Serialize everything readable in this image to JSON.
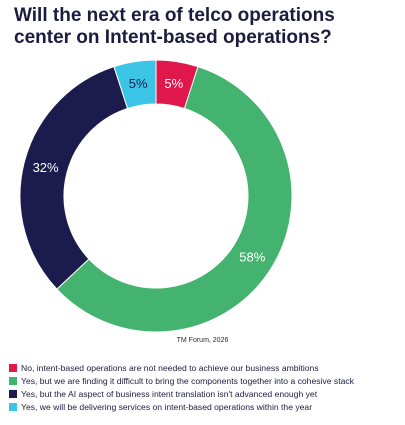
{
  "title": {
    "line1": "Will the next era of telco operations",
    "line2": "center on Intent-based operations?"
  },
  "source": "TM Forum, 2026",
  "chart_data": {
    "type": "pie",
    "donut": true,
    "start_angle_deg": 0,
    "direction": "clockwise",
    "values": [
      5,
      58,
      32,
      5
    ],
    "value_labels": [
      "5%",
      "58%",
      "32%",
      "5%"
    ],
    "categories": [
      "No, intent-based operations are not needed to achieve our business ambitions",
      "Yes, but we are finding it difficult to bring the components together into a cohesive stack",
      "Yes, but the AI aspect of business intent translation isn't advanced enough yet",
      "Yes, we will be delivering services on intent-based operations within the year"
    ],
    "colors": [
      "#e0174a",
      "#44b36f",
      "#1b1b4d",
      "#3cc4e6"
    ],
    "label_colors": [
      "#ffffff",
      "#ffffff",
      "#ffffff",
      "#1b1b4d"
    ],
    "legend_position": "bottom"
  }
}
